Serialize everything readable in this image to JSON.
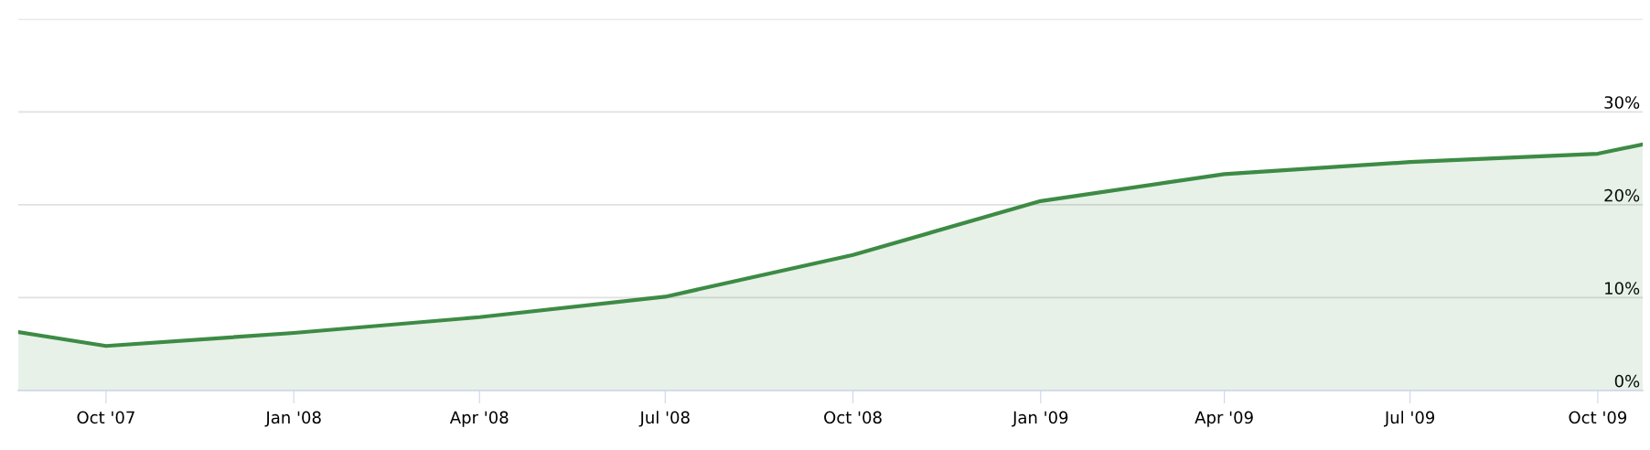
{
  "chart_data": {
    "type": "area",
    "x": [
      "2007-08-19",
      "2007-10-01",
      "2008-01-01",
      "2008-04-01",
      "2008-07-01",
      "2008-10-01",
      "2009-01-01",
      "2009-04-01",
      "2009-07-01",
      "2009-10-01",
      "2009-10-23"
    ],
    "series": [
      {
        "color": "#3d8b45",
        "values": [
          6.3,
          4.8,
          6.2,
          7.9,
          10.1,
          14.6,
          20.4,
          23.3,
          24.6,
          25.5,
          26.5
        ]
      }
    ],
    "xlim": [
      "2007-08-19",
      "2009-10-23"
    ],
    "xticks": [
      {
        "value": "2007-10-01",
        "label": "Oct '07"
      },
      {
        "value": "2008-01-01",
        "label": "Jan '08"
      },
      {
        "value": "2008-04-01",
        "label": "Apr '08"
      },
      {
        "value": "2008-07-01",
        "label": "Jul '08"
      },
      {
        "value": "2008-10-01",
        "label": "Oct '08"
      },
      {
        "value": "2009-01-01",
        "label": "Jan '09"
      },
      {
        "value": "2009-04-01",
        "label": "Apr '09"
      },
      {
        "value": "2009-07-01",
        "label": "Jul '09"
      },
      {
        "value": "2009-10-01",
        "label": "Oct '09"
      }
    ],
    "ylim": [
      0,
      40
    ],
    "yticks": [
      {
        "value": 0,
        "label": "0%"
      },
      {
        "value": 10,
        "label": "10%"
      },
      {
        "value": 20,
        "label": "20%"
      },
      {
        "value": 30,
        "label": "30%"
      },
      {
        "value": 40,
        "label": null
      }
    ],
    "grid": "y",
    "marker": "none",
    "line_style": "solid"
  }
}
